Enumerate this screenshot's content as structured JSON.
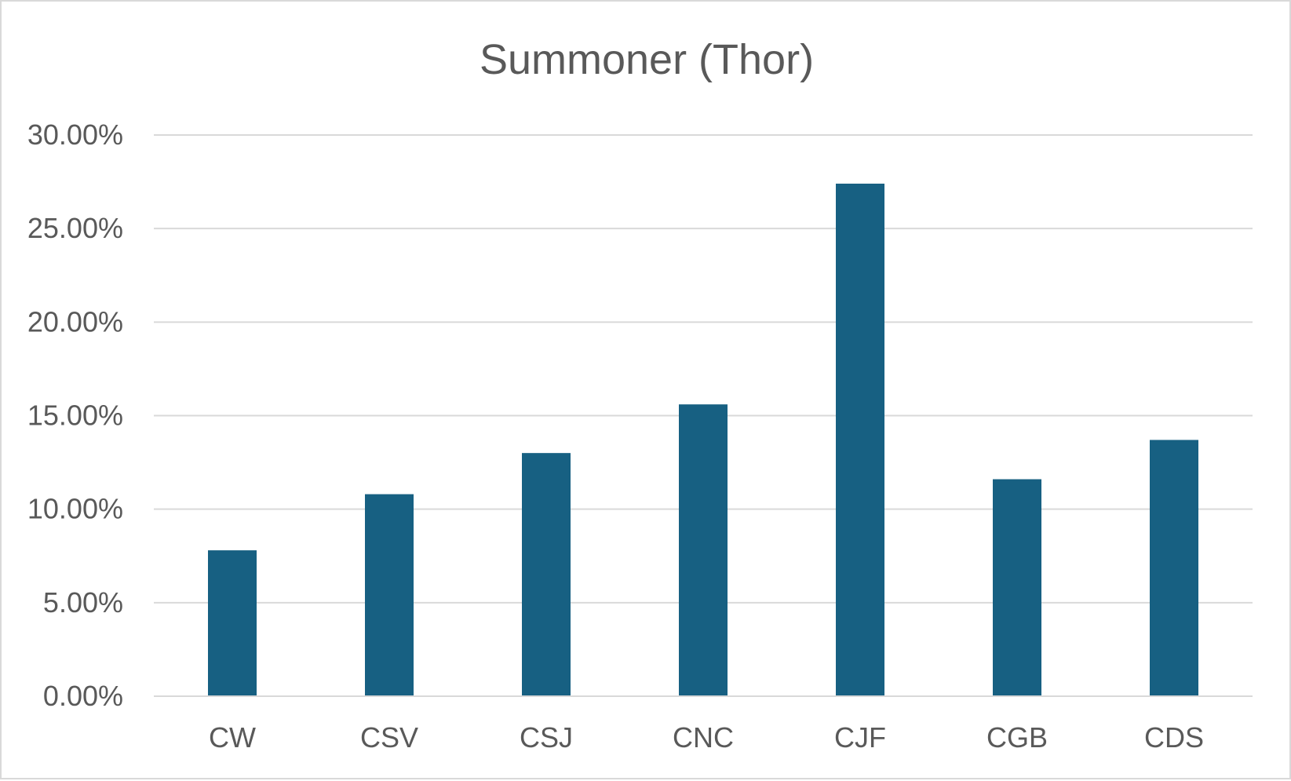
{
  "chart_data": {
    "type": "bar",
    "title": "Summoner (Thor)",
    "xlabel": "",
    "ylabel": "",
    "categories": [
      "CW",
      "CSV",
      "CSJ",
      "CNC",
      "CJF",
      "CGB",
      "CDS"
    ],
    "values": [
      7.8,
      10.8,
      13.0,
      15.6,
      27.4,
      11.6,
      13.7
    ],
    "ylim": [
      0,
      30
    ],
    "y_ticks": [
      0,
      5,
      10,
      15,
      20,
      25,
      30
    ],
    "y_tick_labels": [
      "0.00%",
      "5.00%",
      "10.00%",
      "15.00%",
      "20.00%",
      "25.00%",
      "30.00%"
    ],
    "grid": true,
    "legend": "none",
    "colors": {
      "bar": "#176082",
      "grid": "#d9d9d9",
      "text": "#595959",
      "axis": "#d9d9d9"
    }
  }
}
